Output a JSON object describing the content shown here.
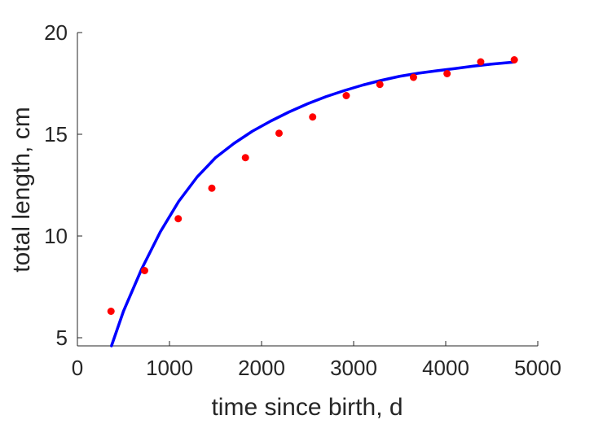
{
  "chart_data": {
    "type": "scatter",
    "title": "",
    "xlabel": "time since birth, d",
    "ylabel": "total length, cm",
    "xlim": [
      0,
      5000
    ],
    "ylim": [
      4.6,
      20
    ],
    "xticks": [
      "0",
      "1000",
      "2000",
      "3000",
      "4000",
      "5000"
    ],
    "yticks": [
      "5",
      "10",
      "15",
      "20"
    ],
    "grid": false,
    "legend": "none",
    "series": [
      {
        "kind": "points",
        "color": "#ff0000",
        "x": [
          365,
          730,
          1095,
          1460,
          1825,
          2190,
          2555,
          2920,
          3285,
          3650,
          4015,
          4380,
          4745
        ],
        "y": [
          6.3,
          8.3,
          10.85,
          12.35,
          13.85,
          15.05,
          15.85,
          16.9,
          17.45,
          17.8,
          17.98,
          18.56,
          18.66
        ]
      },
      {
        "kind": "line",
        "color": "#0000ff",
        "x": [
          370,
          500,
          700,
          900,
          1100,
          1300,
          1500,
          1700,
          1900,
          2100,
          2300,
          2500,
          2700,
          2900,
          3100,
          3300,
          3500,
          3700,
          3900,
          4100,
          4300,
          4500,
          4745
        ],
        "y": [
          4.6,
          6.3,
          8.4,
          10.2,
          11.7,
          12.9,
          13.85,
          14.55,
          15.15,
          15.65,
          16.1,
          16.5,
          16.85,
          17.15,
          17.42,
          17.65,
          17.85,
          18.0,
          18.12,
          18.23,
          18.35,
          18.45,
          18.55
        ]
      }
    ]
  }
}
